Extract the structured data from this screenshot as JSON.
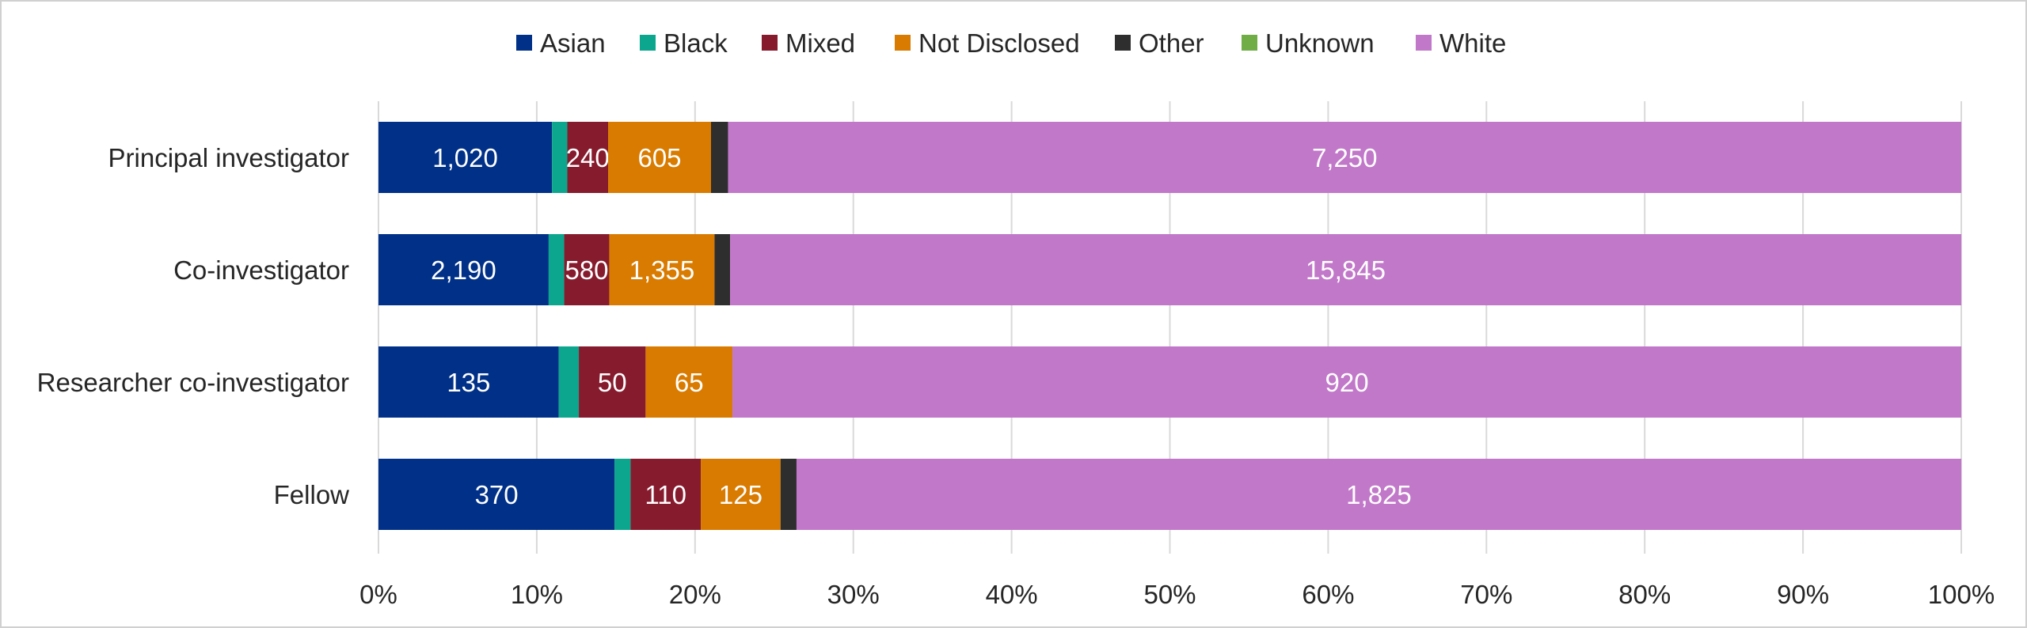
{
  "chart_data": {
    "type": "bar",
    "orientation": "horizontal",
    "stacked": "percent",
    "title": "",
    "xlabel": "",
    "ylabel": "",
    "xlim": [
      0,
      100
    ],
    "x_ticks": [
      "0%",
      "10%",
      "20%",
      "30%",
      "40%",
      "50%",
      "60%",
      "70%",
      "80%",
      "90%",
      "100%"
    ],
    "grid": true,
    "legend_position": "top",
    "categories": [
      "Principal investigator",
      "Co-investigator",
      "Researcher co-investigator",
      "Fellow"
    ],
    "series": [
      {
        "name": "Asian",
        "color": "#003087",
        "values": [
          1020,
          2190,
          135,
          370
        ],
        "labels": [
          "1,020",
          "2,190",
          "135",
          "370"
        ]
      },
      {
        "name": "Black",
        "color": "#0BA68D",
        "values": [
          90,
          200,
          15,
          25
        ],
        "labels": [
          "",
          "",
          "",
          ""
        ]
      },
      {
        "name": "Mixed",
        "color": "#861B2D",
        "values": [
          240,
          580,
          50,
          110
        ],
        "labels": [
          "240",
          "580",
          "50",
          "110"
        ]
      },
      {
        "name": "Not Disclosed",
        "color": "#D97B00",
        "values": [
          605,
          1355,
          65,
          125
        ],
        "labels": [
          "605",
          "1,355",
          "65",
          "125"
        ]
      },
      {
        "name": "Other",
        "color": "#2E2E2E",
        "values": [
          100,
          200,
          0,
          25
        ],
        "labels": [
          "",
          "",
          "",
          ""
        ]
      },
      {
        "name": "Unknown",
        "color": "#70AD47",
        "values": [
          0,
          0,
          0,
          0
        ],
        "labels": [
          "",
          "",
          "",
          ""
        ]
      },
      {
        "name": "White",
        "color": "#C178C9",
        "values": [
          7250,
          15845,
          920,
          1825
        ],
        "labels": [
          "7,250",
          "15,845",
          "920",
          "1,825"
        ]
      }
    ]
  }
}
